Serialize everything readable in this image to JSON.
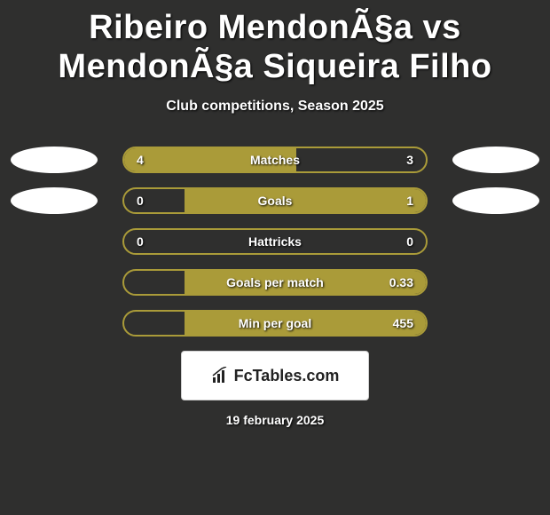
{
  "title": "Ribeiro MendonÃ§a vs MendonÃ§a Siqueira Filho",
  "subtitle": "Club competitions, Season 2025",
  "colors": {
    "background": "#2f2f2e",
    "accent": "#aa9b39",
    "text": "#ffffff",
    "avatar_bg": "#ffffff",
    "badge_bg": "#ffffff",
    "badge_text": "#222222"
  },
  "stats": [
    {
      "label": "Matches",
      "left_value": "4",
      "right_value": "3",
      "left_fill_pct": 57,
      "right_fill_pct": 0,
      "show_left_avatar": true,
      "show_right_avatar": true
    },
    {
      "label": "Goals",
      "left_value": "0",
      "right_value": "1",
      "left_fill_pct": 0,
      "right_fill_pct": 80,
      "show_left_avatar": true,
      "show_right_avatar": true
    },
    {
      "label": "Hattricks",
      "left_value": "0",
      "right_value": "0",
      "left_fill_pct": 0,
      "right_fill_pct": 0,
      "show_left_avatar": false,
      "show_right_avatar": false
    },
    {
      "label": "Goals per match",
      "left_value": "",
      "right_value": "0.33",
      "left_fill_pct": 0,
      "right_fill_pct": 80,
      "show_left_avatar": false,
      "show_right_avatar": false
    },
    {
      "label": "Min per goal",
      "left_value": "",
      "right_value": "455",
      "left_fill_pct": 0,
      "right_fill_pct": 80,
      "show_left_avatar": false,
      "show_right_avatar": false
    }
  ],
  "footer": {
    "brand": "FcTables.com",
    "date": "19 february 2025"
  }
}
